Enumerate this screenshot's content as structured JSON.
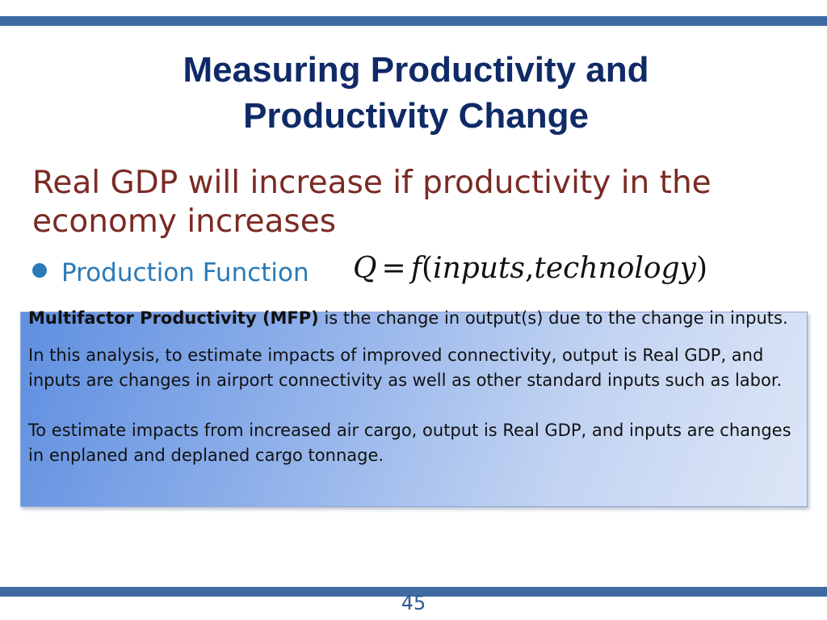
{
  "title": {
    "line1": "Measuring Productivity and",
    "line2": "Productivity Change"
  },
  "headline": {
    "line1": "Real GDP will increase if productivity in the",
    "line2": "economy increases"
  },
  "bullet": {
    "label": "Production Function"
  },
  "formula": {
    "lhs": "Q",
    "equals": "=",
    "func": "f",
    "open": "(",
    "arg1": "inputs",
    "comma": ",",
    "arg2": "technology",
    "close": ")"
  },
  "info_box": {
    "mfp_term": "Multifactor Productivity (MFP)",
    "mfp_definition": " is the change in output(s) due to the change in inputs.",
    "connectivity_text": "In this analysis, to estimate impacts of improved connectivity, output is Real GDP, and inputs are changes in airport connectivity as well as other standard inputs such as labor.",
    "cargo_text": "To estimate impacts from increased air cargo, output is Real GDP, and inputs are changes in enplaned and deplaned cargo tonnage."
  },
  "page_number": "45",
  "colors": {
    "accent_bar": "#3d6aa0",
    "title": "#0f2a66",
    "headline": "#7a2a24",
    "bullet": "#2a7ab8"
  }
}
